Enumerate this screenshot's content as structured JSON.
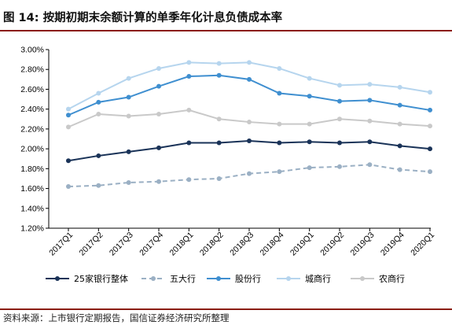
{
  "header": {
    "figure_label": "图 14:",
    "title": "按期初期末余额计算的单季年化计息负债成本率"
  },
  "footer": {
    "source": "资料来源：上市银行定期报告，国信证券经济研究所整理"
  },
  "colors": {
    "accent_rule": "#8b1d12",
    "series_25banks": "#1a3358",
    "series_big5": "#9bb0c4",
    "series_joint_stock": "#3f8fd0",
    "series_city": "#b6d5ee",
    "series_rural": "#c9c9c9"
  },
  "chart_data": {
    "type": "line",
    "title": "按期初期末余额计算的单季年化计息负债成本率",
    "xlabel": "",
    "ylabel": "",
    "ylim": [
      1.2,
      3.0
    ],
    "y_tick_labels": [
      "1.20%",
      "1.40%",
      "1.60%",
      "1.80%",
      "2.00%",
      "2.20%",
      "2.40%",
      "2.60%",
      "2.80%",
      "3.00%"
    ],
    "y_ticks": [
      1.2,
      1.4,
      1.6,
      1.8,
      2.0,
      2.2,
      2.4,
      2.6,
      2.8,
      3.0
    ],
    "grid": false,
    "legend_position": "bottom",
    "categories": [
      "2017Q1",
      "2017Q2",
      "2017Q3",
      "2017Q4",
      "2018Q1",
      "2018Q2",
      "2018Q3",
      "2018Q4",
      "2019Q1",
      "2019Q2",
      "2019Q3",
      "2019Q4",
      "2020Q1"
    ],
    "series": [
      {
        "name": "25家银行整体",
        "color": "#1a3358",
        "dashed": false,
        "values": [
          1.88,
          1.93,
          1.97,
          2.01,
          2.06,
          2.06,
          2.08,
          2.06,
          2.07,
          2.06,
          2.07,
          2.03,
          2.0
        ]
      },
      {
        "name": "五大行",
        "color": "#9bb0c4",
        "dashed": true,
        "values": [
          1.62,
          1.63,
          1.66,
          1.67,
          1.69,
          1.7,
          1.75,
          1.77,
          1.81,
          1.82,
          1.84,
          1.79,
          1.77
        ]
      },
      {
        "name": "股份行",
        "color": "#3f8fd0",
        "dashed": false,
        "values": [
          2.34,
          2.47,
          2.52,
          2.63,
          2.73,
          2.74,
          2.7,
          2.56,
          2.53,
          2.48,
          2.49,
          2.44,
          2.39
        ]
      },
      {
        "name": "城商行",
        "color": "#b6d5ee",
        "dashed": false,
        "values": [
          2.4,
          2.56,
          2.71,
          2.81,
          2.87,
          2.86,
          2.87,
          2.81,
          2.71,
          2.64,
          2.65,
          2.62,
          2.57
        ]
      },
      {
        "name": "农商行",
        "color": "#c9c9c9",
        "dashed": false,
        "values": [
          2.22,
          2.35,
          2.33,
          2.35,
          2.39,
          2.3,
          2.27,
          2.25,
          2.25,
          2.3,
          2.28,
          2.25,
          2.23
        ]
      }
    ]
  }
}
